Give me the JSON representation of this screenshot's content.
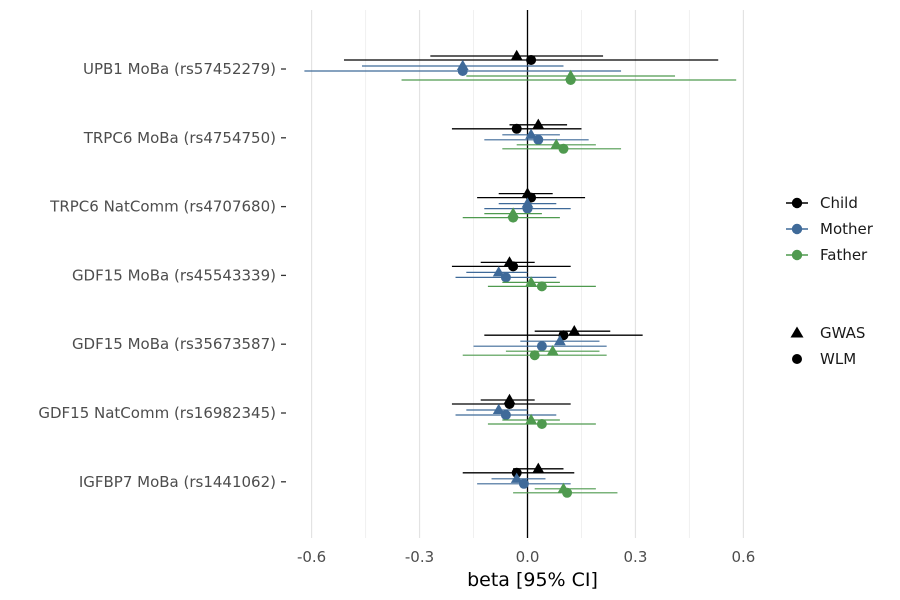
{
  "chart_data": {
    "type": "forest",
    "title": "",
    "xlabel": "beta [95% CI]",
    "ylabel": "",
    "xlim": [
      -0.66,
      0.66
    ],
    "x_ticks": [
      -0.6,
      -0.3,
      0.0,
      0.3,
      0.6
    ],
    "x_tick_labels": [
      "-0.6",
      "-0.3",
      "0.0",
      "0.3",
      "0.6"
    ],
    "grid": "vertical major and minor",
    "reference_line": 0,
    "legend_position": "right",
    "categories": [
      "UPB1 MoBa (rs57452279)",
      "TRPC6 MoBa (rs4754750)",
      "TRPC6 NatComm (rs4707680)",
      "GDF15 MoBa (rs45543339)",
      "GDF15 MoBa (rs35673587)",
      "GDF15 NatComm (rs16982345)",
      "IGFBP7 MoBa (rs1441062)"
    ],
    "colors": {
      "Child": "#000000",
      "Mother": "#3f6a99",
      "Father": "#4f9a4f"
    },
    "colour_legend": {
      "entries": [
        "Child",
        "Mother",
        "Father"
      ]
    },
    "shape_legend": {
      "entries": [
        "GWAS",
        "WLM"
      ],
      "shapes": [
        "triangle",
        "circle"
      ]
    },
    "estimates": [
      {
        "category": 0,
        "person": "Child",
        "method": "GWAS",
        "beta": -0.03,
        "ci95": [
          -0.27,
          0.21
        ]
      },
      {
        "category": 0,
        "person": "Child",
        "method": "WLM",
        "beta": 0.01,
        "ci95": [
          -0.51,
          0.53
        ]
      },
      {
        "category": 0,
        "person": "Mother",
        "method": "GWAS",
        "beta": -0.18,
        "ci95": [
          -0.46,
          0.1
        ]
      },
      {
        "category": 0,
        "person": "Mother",
        "method": "WLM",
        "beta": -0.18,
        "ci95": [
          -0.62,
          0.26
        ]
      },
      {
        "category": 0,
        "person": "Father",
        "method": "GWAS",
        "beta": 0.12,
        "ci95": [
          -0.17,
          0.41
        ]
      },
      {
        "category": 0,
        "person": "Father",
        "method": "WLM",
        "beta": 0.12,
        "ci95": [
          -0.35,
          0.58
        ]
      },
      {
        "category": 1,
        "person": "Child",
        "method": "GWAS",
        "beta": 0.03,
        "ci95": [
          -0.05,
          0.11
        ]
      },
      {
        "category": 1,
        "person": "Child",
        "method": "WLM",
        "beta": -0.03,
        "ci95": [
          -0.21,
          0.15
        ]
      },
      {
        "category": 1,
        "person": "Mother",
        "method": "GWAS",
        "beta": 0.01,
        "ci95": [
          -0.07,
          0.09
        ]
      },
      {
        "category": 1,
        "person": "Mother",
        "method": "WLM",
        "beta": 0.03,
        "ci95": [
          -0.12,
          0.17
        ]
      },
      {
        "category": 1,
        "person": "Father",
        "method": "GWAS",
        "beta": 0.08,
        "ci95": [
          -0.03,
          0.19
        ]
      },
      {
        "category": 1,
        "person": "Father",
        "method": "WLM",
        "beta": 0.1,
        "ci95": [
          -0.07,
          0.26
        ]
      },
      {
        "category": 2,
        "person": "Child",
        "method": "GWAS",
        "beta": 0.0,
        "ci95": [
          -0.08,
          0.07
        ]
      },
      {
        "category": 2,
        "person": "Child",
        "method": "WLM",
        "beta": 0.01,
        "ci95": [
          -0.14,
          0.16
        ]
      },
      {
        "category": 2,
        "person": "Mother",
        "method": "GWAS",
        "beta": 0.0,
        "ci95": [
          -0.08,
          0.08
        ]
      },
      {
        "category": 2,
        "person": "Mother",
        "method": "WLM",
        "beta": 0.0,
        "ci95": [
          -0.12,
          0.12
        ]
      },
      {
        "category": 2,
        "person": "Father",
        "method": "GWAS",
        "beta": -0.04,
        "ci95": [
          -0.12,
          0.04
        ]
      },
      {
        "category": 2,
        "person": "Father",
        "method": "WLM",
        "beta": -0.04,
        "ci95": [
          -0.18,
          0.09
        ]
      },
      {
        "category": 3,
        "person": "Child",
        "method": "GWAS",
        "beta": -0.05,
        "ci95": [
          -0.13,
          0.02
        ]
      },
      {
        "category": 3,
        "person": "Child",
        "method": "WLM",
        "beta": -0.04,
        "ci95": [
          -0.21,
          0.12
        ]
      },
      {
        "category": 3,
        "person": "Mother",
        "method": "GWAS",
        "beta": -0.08,
        "ci95": [
          -0.17,
          0.0
        ]
      },
      {
        "category": 3,
        "person": "Mother",
        "method": "WLM",
        "beta": -0.06,
        "ci95": [
          -0.2,
          0.08
        ]
      },
      {
        "category": 3,
        "person": "Father",
        "method": "GWAS",
        "beta": 0.01,
        "ci95": [
          -0.07,
          0.09
        ]
      },
      {
        "category": 3,
        "person": "Father",
        "method": "WLM",
        "beta": 0.04,
        "ci95": [
          -0.11,
          0.19
        ]
      },
      {
        "category": 4,
        "person": "Child",
        "method": "GWAS",
        "beta": 0.13,
        "ci95": [
          0.02,
          0.23
        ]
      },
      {
        "category": 4,
        "person": "Child",
        "method": "WLM",
        "beta": 0.1,
        "ci95": [
          -0.12,
          0.32
        ]
      },
      {
        "category": 4,
        "person": "Mother",
        "method": "GWAS",
        "beta": 0.09,
        "ci95": [
          -0.02,
          0.2
        ]
      },
      {
        "category": 4,
        "person": "Mother",
        "method": "WLM",
        "beta": 0.04,
        "ci95": [
          -0.15,
          0.22
        ]
      },
      {
        "category": 4,
        "person": "Father",
        "method": "GWAS",
        "beta": 0.07,
        "ci95": [
          -0.06,
          0.2
        ]
      },
      {
        "category": 4,
        "person": "Father",
        "method": "WLM",
        "beta": 0.02,
        "ci95": [
          -0.18,
          0.22
        ]
      },
      {
        "category": 5,
        "person": "Child",
        "method": "GWAS",
        "beta": -0.05,
        "ci95": [
          -0.13,
          0.02
        ]
      },
      {
        "category": 5,
        "person": "Child",
        "method": "WLM",
        "beta": -0.05,
        "ci95": [
          -0.21,
          0.12
        ]
      },
      {
        "category": 5,
        "person": "Mother",
        "method": "GWAS",
        "beta": -0.08,
        "ci95": [
          -0.17,
          0.0
        ]
      },
      {
        "category": 5,
        "person": "Mother",
        "method": "WLM",
        "beta": -0.06,
        "ci95": [
          -0.2,
          0.08
        ]
      },
      {
        "category": 5,
        "person": "Father",
        "method": "GWAS",
        "beta": 0.01,
        "ci95": [
          -0.07,
          0.09
        ]
      },
      {
        "category": 5,
        "person": "Father",
        "method": "WLM",
        "beta": 0.04,
        "ci95": [
          -0.11,
          0.19
        ]
      },
      {
        "category": 6,
        "person": "Child",
        "method": "GWAS",
        "beta": 0.03,
        "ci95": [
          -0.04,
          0.1
        ]
      },
      {
        "category": 6,
        "person": "Child",
        "method": "WLM",
        "beta": -0.03,
        "ci95": [
          -0.18,
          0.13
        ]
      },
      {
        "category": 6,
        "person": "Mother",
        "method": "GWAS",
        "beta": -0.03,
        "ci95": [
          -0.1,
          0.05
        ]
      },
      {
        "category": 6,
        "person": "Mother",
        "method": "WLM",
        "beta": -0.01,
        "ci95": [
          -0.14,
          0.12
        ]
      },
      {
        "category": 6,
        "person": "Father",
        "method": "GWAS",
        "beta": 0.1,
        "ci95": [
          0.02,
          0.19
        ]
      },
      {
        "category": 6,
        "person": "Father",
        "method": "WLM",
        "beta": 0.11,
        "ci95": [
          -0.04,
          0.25
        ]
      }
    ]
  }
}
